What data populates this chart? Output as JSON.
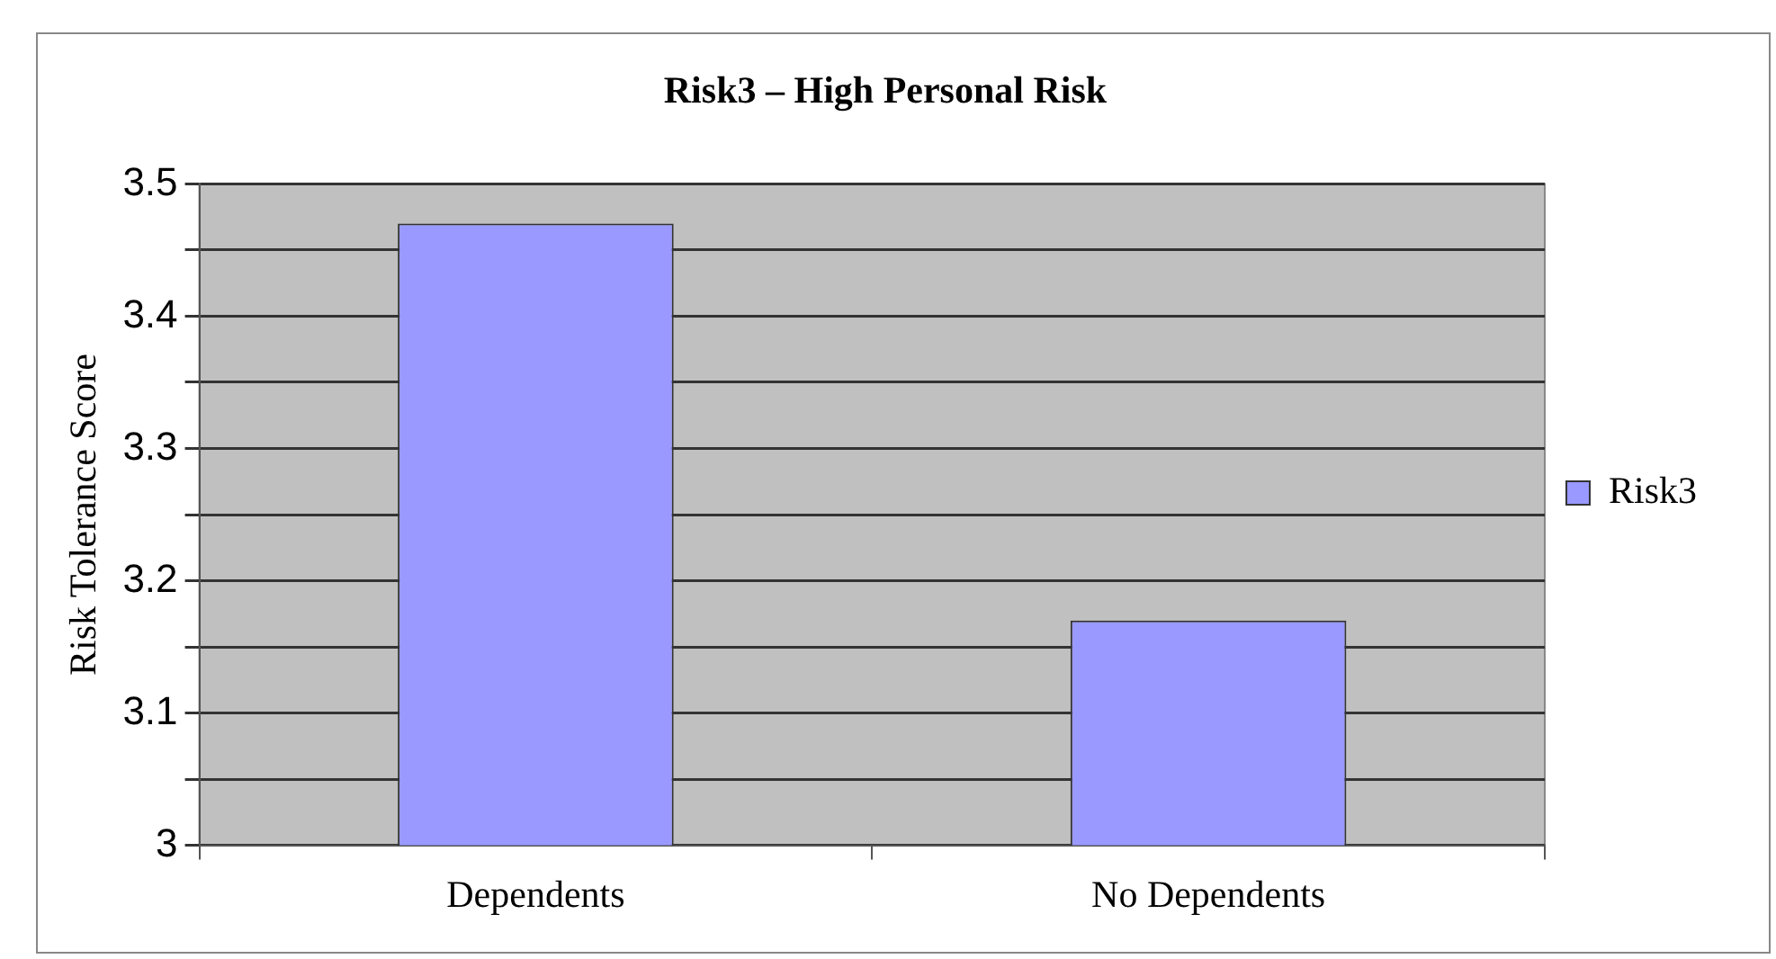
{
  "chart_data": {
    "type": "bar",
    "title": "Risk3 – High Personal Risk",
    "ylabel": "Risk Tolerance Score",
    "categories": [
      "Dependents",
      "No Dependents"
    ],
    "series": [
      {
        "name": "Risk3",
        "color": "#9999ff",
        "values": [
          3.47,
          3.17
        ]
      }
    ],
    "ylim": [
      3,
      3.5
    ],
    "yticks": [
      3,
      {
        "value": 3.05,
        "label": null
      },
      3.1,
      {
        "value": 3.15,
        "label": null
      },
      3.2,
      {
        "value": 3.25,
        "label": null
      },
      3.3,
      {
        "value": 3.35,
        "label": null
      },
      3.4,
      {
        "value": 3.45,
        "label": null
      },
      3.5
    ],
    "grid": "y",
    "legend": "right"
  }
}
